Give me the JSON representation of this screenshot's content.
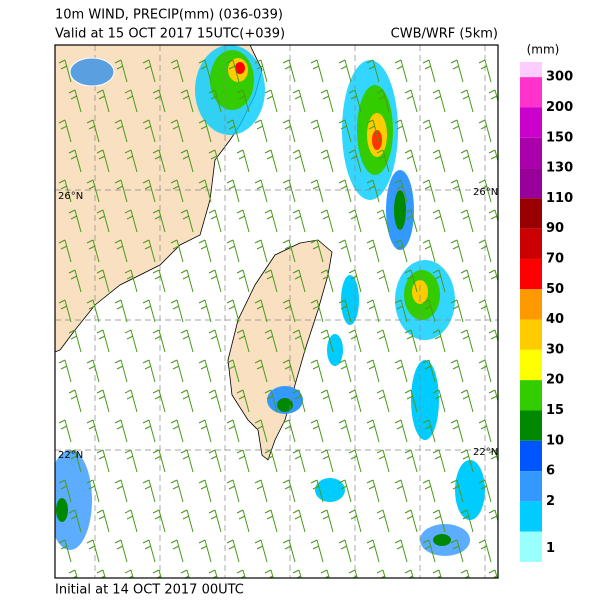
{
  "header": {
    "title": "10m WIND, PRECIP(mm) (036-039)",
    "valid": "Valid at 15 OCT 2017 15UTC(+039)",
    "source": "CWB/WRF (5km)"
  },
  "map": {
    "lat_labels": [
      "26°N",
      "26°N",
      "22°N",
      "22°N"
    ]
  },
  "legend": {
    "unit": "(mm)",
    "items": [
      {
        "label": "300",
        "color": "#ff33cc"
      },
      {
        "label": "200",
        "color": "#cc00cc"
      },
      {
        "label": "150",
        "color": "#aa00aa"
      },
      {
        "label": "130",
        "color": "#990099"
      },
      {
        "label": "110",
        "color": "#990000"
      },
      {
        "label": "90",
        "color": "#cc0000"
      },
      {
        "label": "70",
        "color": "#ff0000"
      },
      {
        "label": "50",
        "color": "#ff9900"
      },
      {
        "label": "40",
        "color": "#ffcc00"
      },
      {
        "label": "30",
        "color": "#ffff00"
      },
      {
        "label": "20",
        "color": "#33cc00"
      },
      {
        "label": "15",
        "color": "#008800"
      },
      {
        "label": "10",
        "color": "#0055ff"
      },
      {
        "label": "6",
        "color": "#3399ff"
      },
      {
        "label": "2",
        "color": "#00ccff"
      },
      {
        "label": "1",
        "color": "#99ffff"
      }
    ],
    "top_color": "#ffccff"
  },
  "footer": {
    "initial": "Initial at 14 OCT 2017 00UTC"
  }
}
